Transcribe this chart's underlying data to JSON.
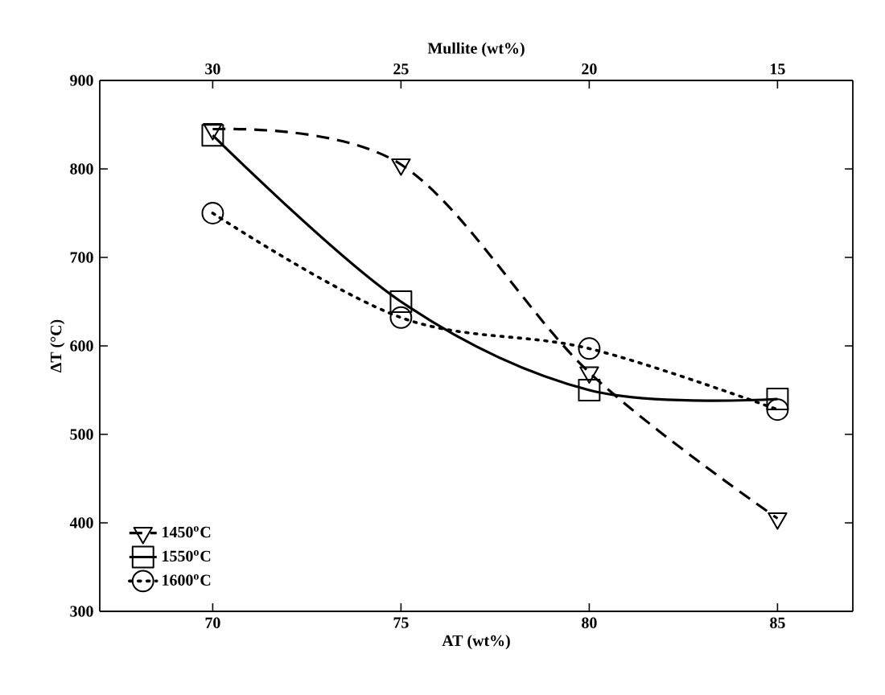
{
  "chart_data": {
    "type": "line",
    "xlabel": "AT (wt%)",
    "ylabel": "ΔT (°C)",
    "x2label": "Mullite (wt%)",
    "x": [
      70,
      75,
      80,
      85
    ],
    "series": [
      {
        "name": "1450$^{o}$C",
        "color": "#000000",
        "values": [
          845,
          805,
          570,
          405
        ],
        "marker": "triangle",
        "line_style": "dashed"
      },
      {
        "name": "1550$^{o}$C",
        "color": "#000000",
        "values": [
          838,
          650,
          550,
          540
        ],
        "marker": "square",
        "line_style": "solid"
      },
      {
        "name": "1600$^{o}$C",
        "color": "#000000",
        "values": [
          750,
          632,
          597,
          528
        ],
        "marker": "circle",
        "line_style": "dotted"
      }
    ],
    "xlim": [
      67,
      87
    ],
    "xticks": [
      70,
      75,
      80,
      85
    ],
    "x2lim": [
      33,
      13
    ],
    "x2ticks": [
      30,
      25,
      20,
      15
    ],
    "ylim": [
      300,
      900
    ],
    "yticks": [
      300,
      400,
      500,
      600,
      700,
      800,
      900
    ],
    "legend": "bottom left",
    "grid": false
  }
}
